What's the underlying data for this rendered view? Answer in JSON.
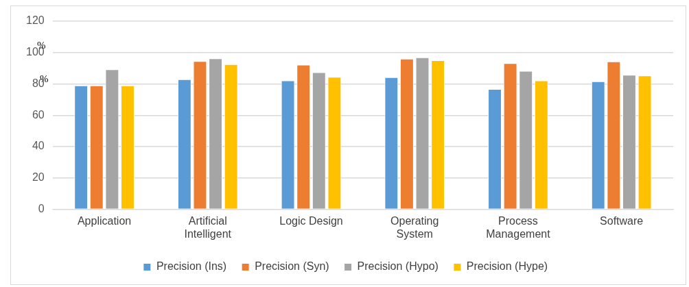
{
  "chart_data": {
    "type": "bar",
    "categories": [
      "Application",
      "Artificial Intelligent",
      "Logic Design",
      "Operating System",
      "Process Management",
      "Software"
    ],
    "series": [
      {
        "name": "Precision (Ins)",
        "color": "#5b9bd5",
        "values": [
          79,
          83,
          82.2,
          84.3,
          76.7,
          81.6
        ]
      },
      {
        "name": "Precision (Syn)",
        "color": "#ed7d31",
        "values": [
          79,
          94.5,
          92.2,
          96.1,
          93.2,
          94.3
        ]
      },
      {
        "name": "Precision (Hypo)",
        "color": "#a5a5a5",
        "values": [
          89.3,
          96.3,
          87.4,
          96.9,
          88.3,
          85.8
        ]
      },
      {
        "name": "Precision (Hype)",
        "color": "#ffc000",
        "values": [
          79,
          92.6,
          84.5,
          95.1,
          82.2,
          85.4
        ]
      }
    ],
    "ylim": [
      0,
      120
    ],
    "yticks": [
      0,
      20,
      40,
      60,
      80,
      100,
      120
    ],
    "grid": "y",
    "legend": "bottom",
    "annotations": [
      "%",
      "%"
    ]
  }
}
